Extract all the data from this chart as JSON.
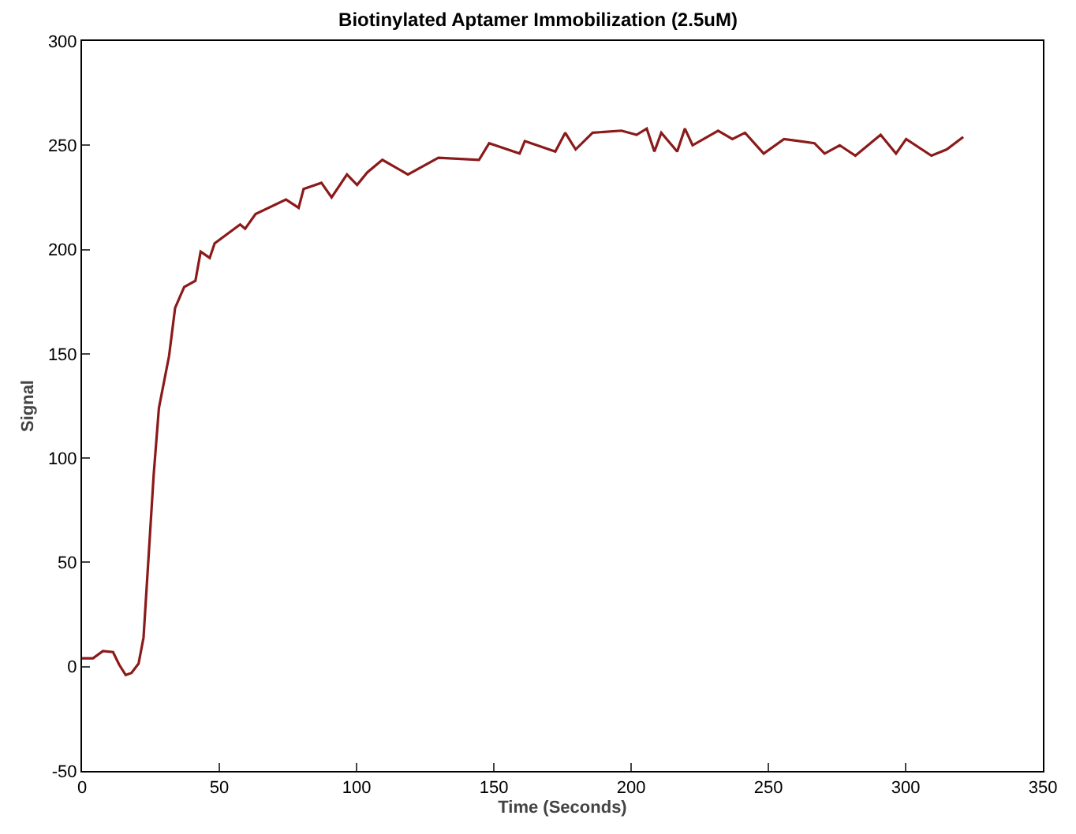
{
  "chart_data": {
    "type": "line",
    "title": "Biotinylated Aptamer Immobilization (2.5uM)",
    "xlabel": "Time (Seconds)",
    "ylabel": "Signal",
    "x": [
      0,
      4,
      7.6,
      11.3,
      13.5,
      15.9,
      18,
      20.6,
      22.4,
      24.3,
      26.1,
      28,
      31.7,
      33.9,
      37.2,
      41.3,
      43.2,
      46.5,
      48.3,
      57.6,
      59.4,
      63.2,
      74.3,
      78.9,
      80.7,
      87.2,
      90.9,
      96.5,
      100.2,
      103.9,
      109.4,
      118.7,
      129.8,
      144.6,
      148.3,
      159.4,
      161.3,
      172.4,
      176,
      179.8,
      186,
      196.5,
      202,
      205.7,
      208.5,
      211,
      216.8,
      219.6,
      222.4,
      231.7,
      236.9,
      241.5,
      248.3,
      255.7,
      266.8,
      270.5,
      276,
      281.7,
      290.9,
      296.5,
      300.2,
      309.4,
      315,
      321
    ],
    "series": [
      {
        "color": "#8b1a1a",
        "values": [
          4,
          4,
          7.5,
          7,
          1,
          -4,
          -3,
          1.5,
          14,
          54,
          92,
          124,
          149,
          172,
          182,
          185,
          199,
          196,
          203,
          212,
          210,
          217,
          224,
          220,
          229,
          232,
          225,
          236,
          231,
          237,
          243,
          236,
          244,
          243,
          251,
          246,
          252,
          247,
          256,
          248,
          256,
          257,
          255,
          258,
          247,
          256,
          247,
          258,
          250,
          257,
          253,
          256,
          246,
          253,
          251,
          246,
          250,
          245,
          255,
          246,
          253,
          245,
          248,
          254
        ]
      }
    ],
    "xlim": [
      0,
      350
    ],
    "xticks": [
      0,
      50,
      100,
      150,
      200,
      250,
      300,
      350
    ],
    "ylim": [
      -50,
      300
    ],
    "yticks": [
      -50,
      0,
      50,
      100,
      150,
      200,
      250,
      300
    ],
    "grid": false,
    "marker": "none",
    "line_style": "solid"
  }
}
